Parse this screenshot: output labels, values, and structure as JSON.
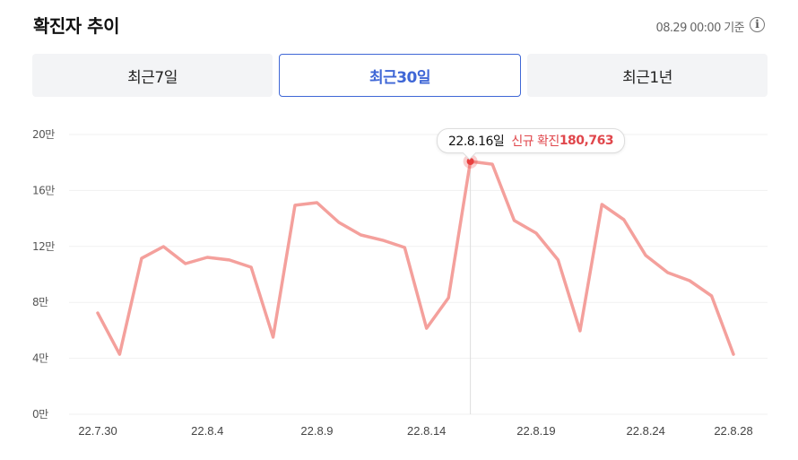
{
  "header": {
    "title": "확진자 추이",
    "as_of": "08.29 00:00 기준",
    "info_icon": "info-circle-icon"
  },
  "tabs": [
    {
      "label": "최근7일",
      "active": false
    },
    {
      "label": "최근30일",
      "active": true
    },
    {
      "label": "최근1년",
      "active": false
    }
  ],
  "tooltip": {
    "date": "22.8.16일",
    "label": "신규 확진",
    "value": "180,763"
  },
  "colors": {
    "line": "#f4a09c",
    "highlight": "#e8403f",
    "accent": "#3f67d6",
    "grid": "#f1f1f1"
  },
  "chart_data": {
    "type": "line",
    "title": "확진자 추이",
    "xlabel": "",
    "ylabel": "",
    "y_ticks": [
      "0만",
      "4만",
      "8만",
      "12만",
      "16만",
      "20만"
    ],
    "ylim": [
      0,
      200000
    ],
    "x_tick_labels": [
      "22.7.30",
      "22.8.4",
      "22.8.9",
      "22.8.14",
      "22.8.19",
      "22.8.24",
      "22.8.28"
    ],
    "grid": true,
    "legend": "none",
    "x": [
      "22.7.30",
      "22.7.31",
      "22.8.1",
      "22.8.2",
      "22.8.3",
      "22.8.4",
      "22.8.5",
      "22.8.6",
      "22.8.7",
      "22.8.8",
      "22.8.9",
      "22.8.10",
      "22.8.11",
      "22.8.12",
      "22.8.13",
      "22.8.14",
      "22.8.15",
      "22.8.16",
      "22.8.17",
      "22.8.18",
      "22.8.19",
      "22.8.20",
      "22.8.21",
      "22.8.22",
      "22.8.23",
      "22.8.24",
      "22.8.25",
      "22.8.26",
      "22.8.27",
      "22.8.28"
    ],
    "series": [
      {
        "name": "신규 확진",
        "values": [
          72400,
          42900,
          111500,
          119900,
          107700,
          112200,
          110300,
          105100,
          55100,
          149400,
          151300,
          137200,
          128200,
          124400,
          119200,
          61500,
          83300,
          180763,
          178800,
          138500,
          129500,
          110300,
          59600,
          150000,
          139100,
          113500,
          101300,
          95500,
          84600,
          42900
        ]
      }
    ],
    "highlight": {
      "x": "22.8.16",
      "value": 180763
    }
  }
}
